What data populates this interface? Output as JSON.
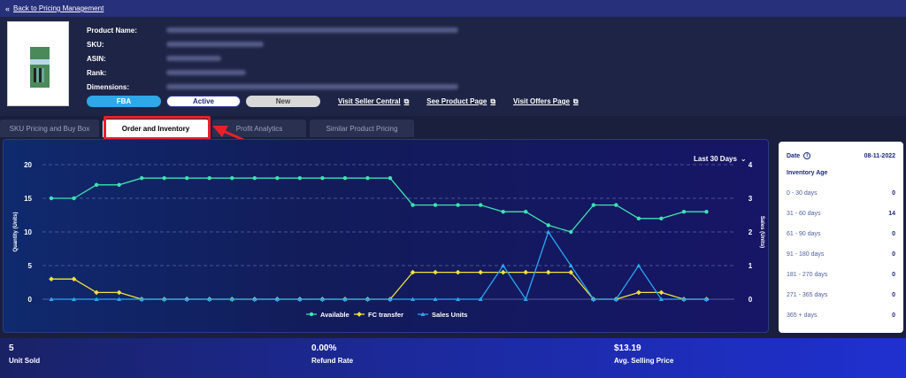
{
  "topbar": {
    "back_label": "Back to Pricing Management"
  },
  "product": {
    "labels": [
      "Product Name:",
      "SKU:",
      "ASIN:",
      "Rank:",
      "Dimensions:"
    ]
  },
  "badges": {
    "fba": "FBA",
    "active": "Active",
    "new": "New"
  },
  "links": {
    "seller_central": "Visit Seller Central",
    "product_page": "See Product Page",
    "offers_page": "Visit Offers Page"
  },
  "tabs": [
    "SKU Pricing and Buy Box",
    "Order and Inventory",
    "Profit Analytics",
    "Similar Product Pricing"
  ],
  "chart_range": "Last 30 Days",
  "chart_data": {
    "type": "line",
    "x": [
      1,
      2,
      3,
      4,
      5,
      6,
      7,
      8,
      9,
      10,
      11,
      12,
      13,
      14,
      15,
      16,
      17,
      18,
      19,
      20,
      21,
      22,
      23,
      24,
      25,
      26,
      27,
      28,
      29,
      30,
      31
    ],
    "series": [
      {
        "name": "Available",
        "axis": "left",
        "color": "#3de3b0",
        "values": [
          15,
          15,
          17,
          17,
          18,
          18,
          18,
          18,
          18,
          18,
          18,
          18,
          18,
          18,
          18,
          18,
          14,
          14,
          14,
          14,
          13,
          13,
          11,
          10,
          14,
          14,
          12,
          12,
          13,
          13,
          null
        ]
      },
      {
        "name": "FC transfer",
        "axis": "left",
        "color": "#f2e23a",
        "values": [
          3,
          3,
          1,
          1,
          0,
          0,
          0,
          0,
          0,
          0,
          0,
          0,
          0,
          0,
          0,
          0,
          4,
          4,
          4,
          4,
          4,
          4,
          4,
          4,
          0,
          0,
          1,
          1,
          0,
          0,
          null
        ]
      },
      {
        "name": "Sales Units",
        "axis": "right",
        "color": "#2aa6f0",
        "values": [
          0,
          0,
          0,
          0,
          0,
          0,
          0,
          0,
          0,
          0,
          0,
          0,
          0,
          0,
          0,
          0,
          0,
          0,
          0,
          0,
          1,
          0,
          2,
          1,
          0,
          0,
          1,
          0,
          0,
          0,
          null
        ]
      }
    ],
    "ylabel": "Quantity (Units)",
    "y2label": "Sales (Units)",
    "ylim": [
      0,
      20
    ],
    "y2lim": [
      0,
      4
    ],
    "yticks": [
      "0",
      "5",
      "10",
      "15",
      "20"
    ],
    "y2ticks": [
      "0",
      "1",
      "2",
      "3",
      "4"
    ],
    "grid": true,
    "legend": "bottom"
  },
  "inventory_age": {
    "date_label": "Date",
    "date_value": "08-11-2022",
    "title": "Inventory Age",
    "rows": [
      {
        "range": "0 - 30 days",
        "value": "0"
      },
      {
        "range": "31 - 60 days",
        "value": "14"
      },
      {
        "range": "61 - 90 days",
        "value": "0"
      },
      {
        "range": "91 - 180 days",
        "value": "0"
      },
      {
        "range": "181 - 270 days",
        "value": "0"
      },
      {
        "range": "271 - 365 days",
        "value": "0"
      },
      {
        "range": "365 + days",
        "value": "0"
      }
    ]
  },
  "stats": [
    {
      "value": "5",
      "label": "Unit Sold"
    },
    {
      "value": "0.00%",
      "label": "Refund Rate"
    },
    {
      "value": "$13.19",
      "label": "Avg. Selling Price"
    }
  ]
}
